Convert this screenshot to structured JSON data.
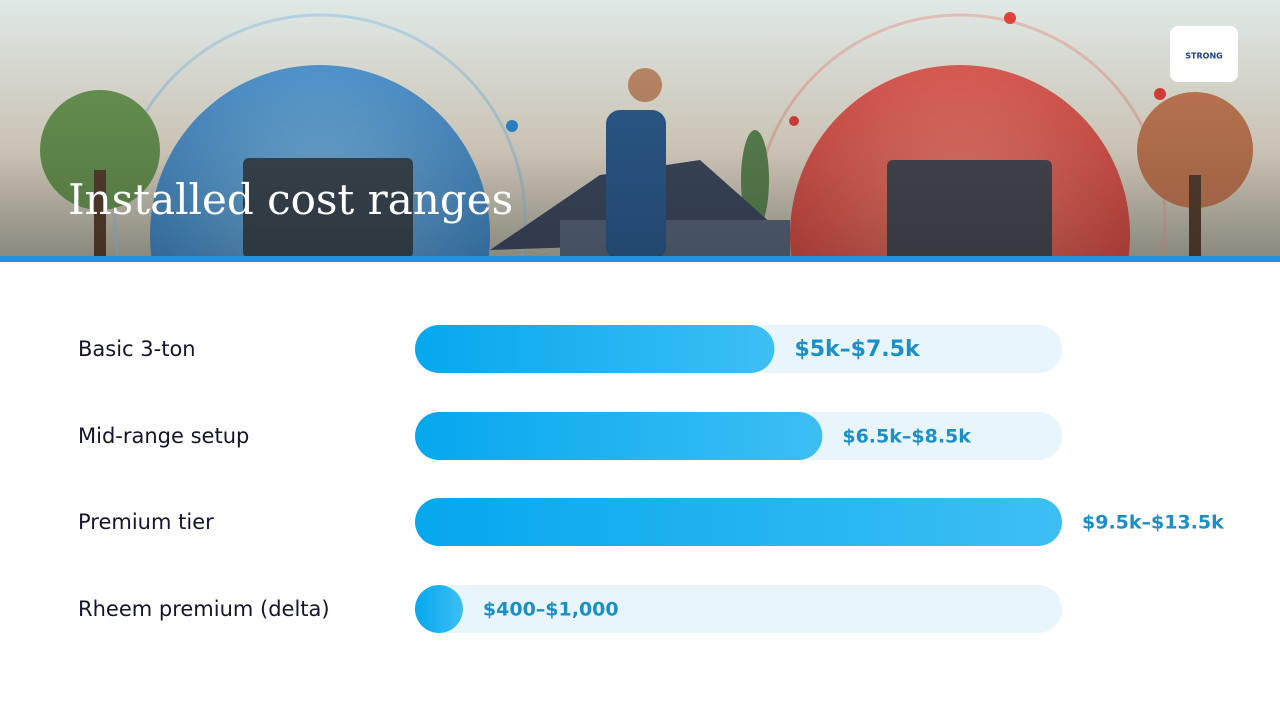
{
  "header": {
    "logo": "STRONG"
  },
  "chart_data": {
    "type": "bar",
    "orientation": "horizontal",
    "title": "Installed cost ranges",
    "categories": [
      "Basic 3-ton",
      "Mid-range setup",
      "Premium tier",
      "Rheem premium (delta)"
    ],
    "values": [
      7500,
      8500,
      13500,
      1000
    ],
    "value_labels": [
      "$5k–$7.5k",
      "$6.5k–$8.5k",
      "$9.5k–$13.5k",
      "$400–$1,000"
    ],
    "xlim": [
      0,
      13500
    ],
    "color": "#05a8ee",
    "track_color": "#e8f5fc"
  }
}
